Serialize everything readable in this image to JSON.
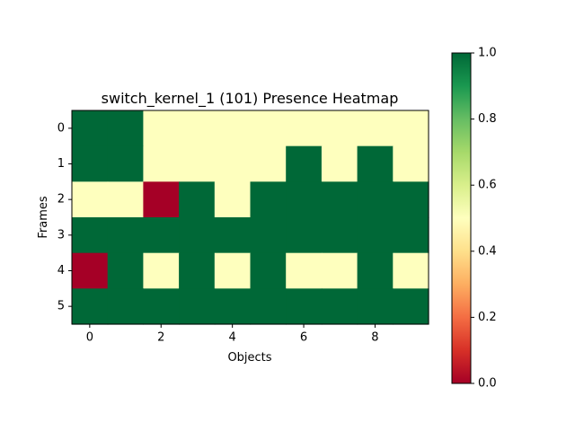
{
  "chart_data": {
    "type": "heatmap",
    "title": "switch_kernel_1 (101) Presence Heatmap",
    "xlabel": "Objects",
    "ylabel": "Frames",
    "x_ticks": [
      "0",
      "2",
      "4",
      "6",
      "8"
    ],
    "y_ticks": [
      "0",
      "1",
      "2",
      "3",
      "4",
      "5"
    ],
    "colorbar_ticks": [
      "0.0",
      "0.2",
      "0.4",
      "0.6",
      "0.8",
      "1.0"
    ],
    "value_range": [
      0,
      1
    ],
    "colormap": "RdYlGn",
    "colors": {
      "low": "#a50026",
      "mid": "#feffbe",
      "high": "#006837"
    },
    "values": [
      [
        1,
        1,
        0.5,
        0.5,
        0.5,
        0.5,
        0.5,
        0.5,
        0.5,
        0.5
      ],
      [
        1,
        1,
        0.5,
        0.5,
        0.5,
        0.5,
        1,
        0.5,
        1,
        0.5
      ],
      [
        0.5,
        0.5,
        0,
        1,
        0.5,
        1,
        1,
        1,
        1,
        1
      ],
      [
        1,
        1,
        1,
        1,
        1,
        1,
        1,
        1,
        1,
        1
      ],
      [
        0,
        1,
        0.5,
        1,
        0.5,
        1,
        0.5,
        0.5,
        1,
        0.5
      ],
      [
        1,
        1,
        1,
        1,
        1,
        1,
        1,
        1,
        1,
        1
      ]
    ]
  }
}
